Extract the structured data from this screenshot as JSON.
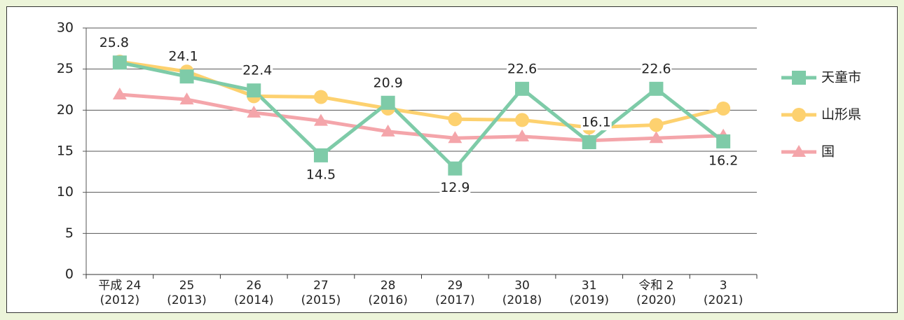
{
  "chart_data": {
    "type": "line",
    "categories": [
      "平成 24\n(2012)",
      "25\n(2013)",
      "26\n(2014)",
      "27\n(2015)",
      "28\n(2016)",
      "29\n(2017)",
      "30\n(2018)",
      "31\n(2019)",
      "令和 2\n(2020)",
      "3\n(2021)"
    ],
    "series": [
      {
        "name": "天童市",
        "color": "#7ecba8",
        "marker": "square",
        "values": [
          25.8,
          24.1,
          22.4,
          14.5,
          20.9,
          12.9,
          22.6,
          16.1,
          22.6,
          16.2
        ]
      },
      {
        "name": "山形県",
        "color": "#fdd16f",
        "marker": "circle",
        "values": [
          25.9,
          24.7,
          21.7,
          21.6,
          20.2,
          18.9,
          18.8,
          17.9,
          18.2,
          20.2
        ]
      },
      {
        "name": "国",
        "color": "#f4a5aa",
        "marker": "triangle",
        "values": [
          21.9,
          21.3,
          19.7,
          18.7,
          17.4,
          16.6,
          16.8,
          16.3,
          16.6,
          16.9
        ]
      }
    ],
    "ylim": [
      0,
      30
    ],
    "yticks": [
      0,
      5,
      10,
      15,
      20,
      25,
      30
    ],
    "grid": true,
    "legend": "right"
  }
}
